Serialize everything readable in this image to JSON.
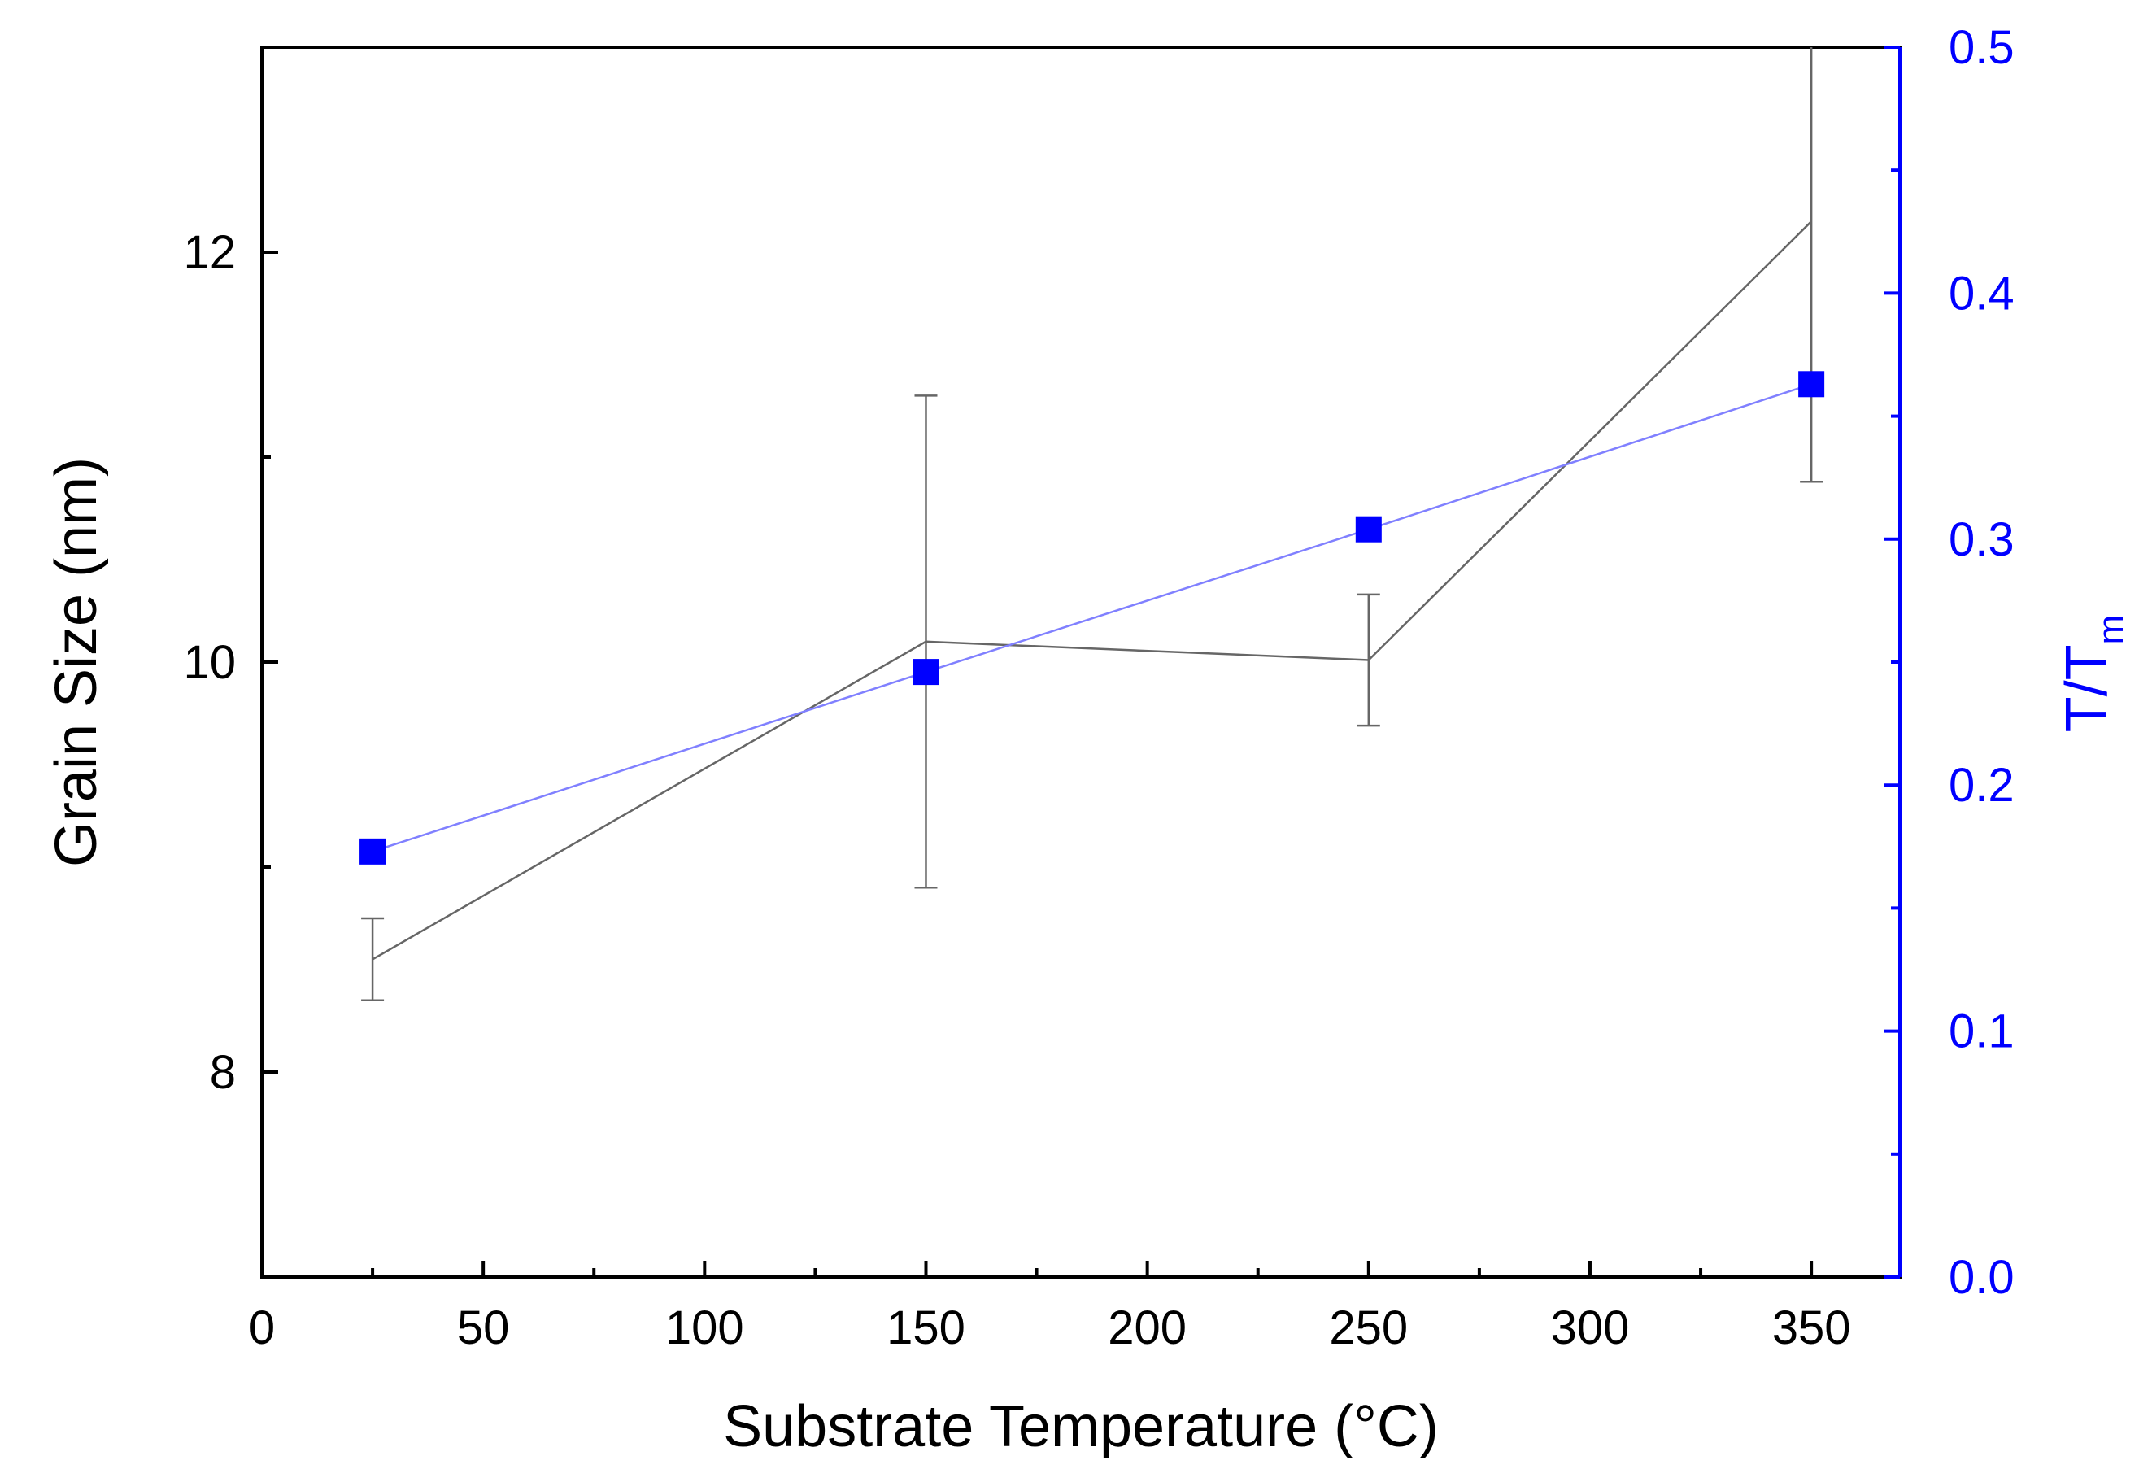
{
  "chart_data": {
    "type": "line",
    "title": "",
    "xlabel": "Substrate Temperature (°C)",
    "ylabel": "Grain Size (nm)",
    "y2label": {
      "main": "T/T",
      "sub": "m"
    },
    "xlim": [
      0,
      370
    ],
    "ylim": [
      7.0,
      13.0
    ],
    "y2lim": [
      0.0,
      0.5
    ],
    "x_ticks": [
      0,
      50,
      100,
      150,
      200,
      250,
      300,
      350
    ],
    "x_tick_labels": [
      "0",
      "50",
      "100",
      "150",
      "200",
      "250",
      "300",
      "350"
    ],
    "y_ticks": [
      8,
      10,
      12
    ],
    "y_tick_labels": [
      "8",
      "10",
      "12"
    ],
    "y2_ticks": [
      0.0,
      0.1,
      0.2,
      0.3,
      0.4,
      0.5
    ],
    "y2_tick_labels": [
      "0.0",
      "0.1",
      "0.2",
      "0.3",
      "0.4",
      "0.5"
    ],
    "grid": false,
    "series": [
      {
        "name": "Grain Size",
        "axis": "left",
        "color": "#666666",
        "marker": "none",
        "x": [
          25,
          150,
          250,
          350
        ],
        "values": [
          8.55,
          10.1,
          10.01,
          12.15
        ],
        "error": [
          0.2,
          1.2,
          0.32,
          1.27
        ]
      },
      {
        "name": "T/Tm",
        "axis": "right",
        "color": "#0000ff",
        "line_color": "#8080ff",
        "marker": "square",
        "x": [
          25,
          150,
          250,
          350
        ],
        "values": [
          0.173,
          0.246,
          0.304,
          0.363
        ]
      }
    ]
  }
}
